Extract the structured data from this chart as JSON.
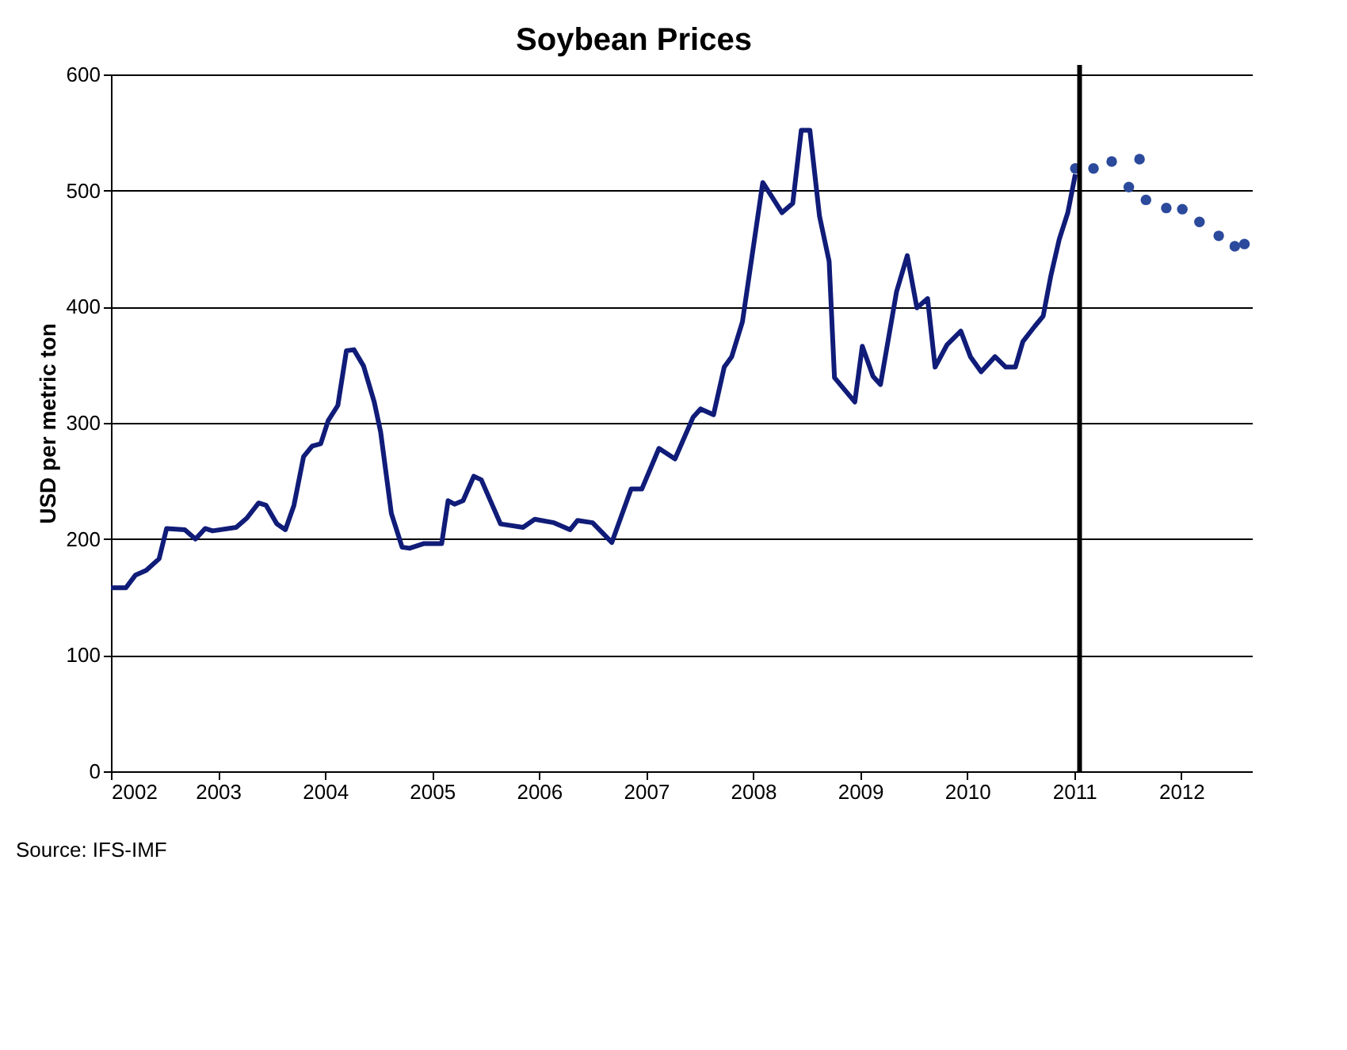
{
  "chart_data": {
    "type": "line",
    "title": "Soybean Prices",
    "ylabel": "USD per metric ton",
    "xlim": [
      2002,
      2012.66
    ],
    "xticks": [
      2002,
      2003,
      2004,
      2005,
      2006,
      2007,
      2008,
      2009,
      2010,
      2011,
      2012
    ],
    "ylim": [
      0,
      600
    ],
    "yticks": [
      0,
      100,
      200,
      300,
      400,
      500,
      600
    ],
    "grid": "y",
    "series": [
      {
        "color": "#101c78",
        "line_style": "solid",
        "marker": "none",
        "x": [
          2002.0,
          2002.14,
          2002.23,
          2002.33,
          2002.45,
          2002.52,
          2002.69,
          2002.79,
          2002.88,
          2002.95,
          2003.17,
          2003.27,
          2003.38,
          2003.45,
          2003.55,
          2003.63,
          2003.71,
          2003.8,
          2003.88,
          2003.96,
          2004.03,
          2004.12,
          2004.2,
          2004.27,
          2004.36,
          2004.46,
          2004.52,
          2004.62,
          2004.72,
          2004.79,
          2004.92,
          2005.09,
          2005.15,
          2005.21,
          2005.29,
          2005.39,
          2005.46,
          2005.64,
          2005.85,
          2005.96,
          2006.14,
          2006.29,
          2006.36,
          2006.5,
          2006.68,
          2006.86,
          2006.96,
          2007.12,
          2007.27,
          2007.44,
          2007.51,
          2007.63,
          2007.73,
          2007.8,
          2007.9,
          2008.09,
          2008.27,
          2008.37,
          2008.45,
          2008.53,
          2008.62,
          2008.71,
          2008.76,
          2008.95,
          2009.02,
          2009.12,
          2009.19,
          2009.34,
          2009.44,
          2009.53,
          2009.63,
          2009.7,
          2009.81,
          2009.94,
          2010.03,
          2010.13,
          2010.26,
          2010.36,
          2010.45,
          2010.52,
          2010.63,
          2010.71,
          2010.78,
          2010.86,
          2010.94,
          2011.01
        ],
        "values": [
          158,
          158,
          169,
          173,
          183,
          209,
          208,
          200,
          209,
          207,
          210,
          218,
          231,
          229,
          213,
          208,
          229,
          271,
          280,
          282,
          302,
          315,
          362,
          363,
          349,
          318,
          292,
          222,
          193,
          192,
          196,
          196,
          233,
          230,
          233,
          254,
          251,
          213,
          210,
          217,
          214,
          208,
          216,
          214,
          197,
          243,
          243,
          278,
          269,
          305,
          312,
          307,
          348,
          357,
          387,
          507,
          481,
          489,
          552,
          552,
          478,
          439,
          339,
          318,
          366,
          340,
          333,
          413,
          444,
          399,
          407,
          348,
          367,
          379,
          357,
          344,
          357,
          348,
          348,
          370,
          383,
          392,
          426,
          458,
          481,
          514
        ]
      },
      {
        "type": "scatter",
        "color": "#2b4a9c",
        "marker": "circle",
        "x": [
          2011.01,
          2011.18,
          2011.35,
          2011.51,
          2011.61,
          2011.67,
          2011.86,
          2012.01,
          2012.17,
          2012.35,
          2012.5,
          2012.59
        ],
        "values": [
          519,
          519,
          525,
          503,
          527,
          492,
          485,
          484,
          473,
          461,
          452,
          454
        ]
      }
    ],
    "ref_lines": [
      {
        "axis": "x",
        "value": 2011.05,
        "color": "#000000",
        "line_style": "solid"
      }
    ],
    "annotations": [
      "Source: IFS-IMF"
    ]
  }
}
